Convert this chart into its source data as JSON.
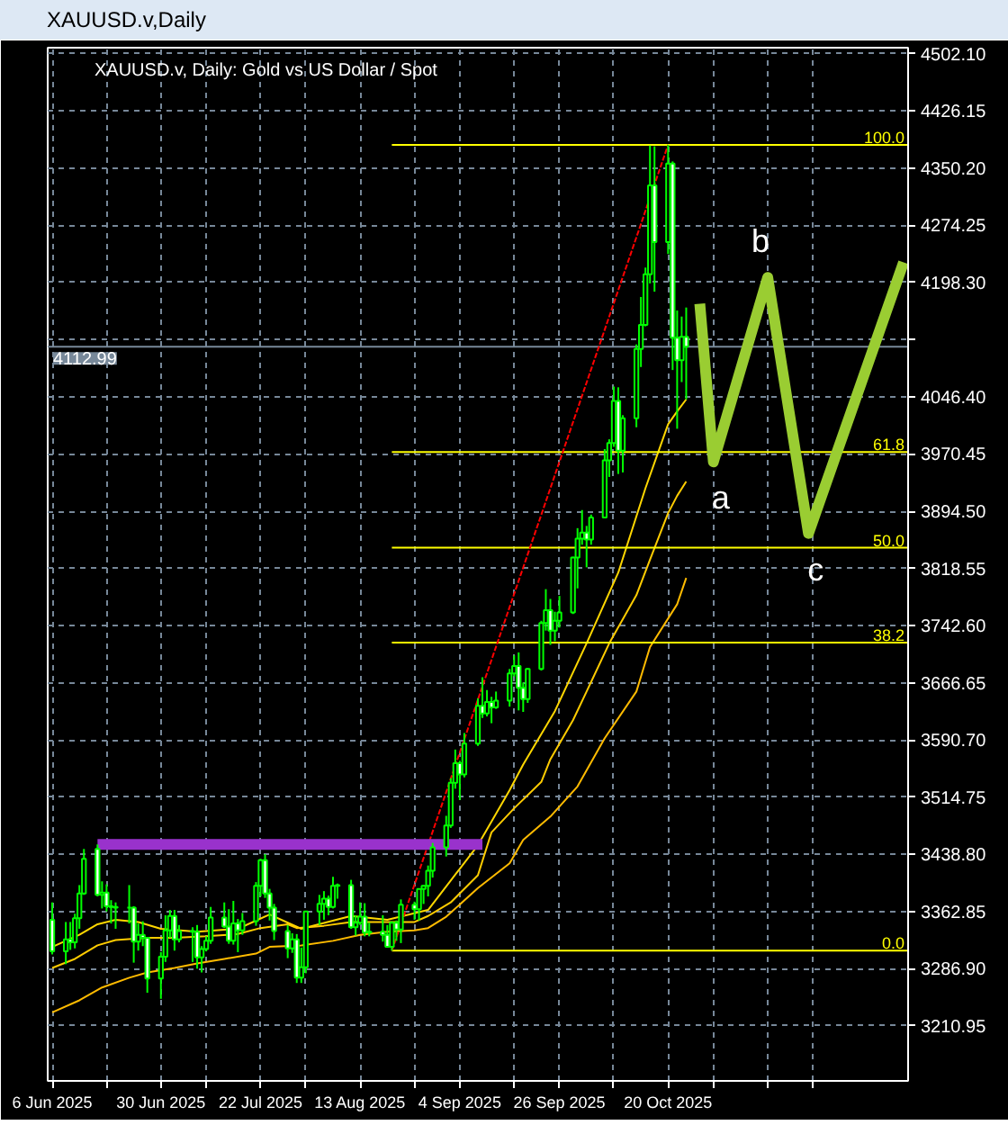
{
  "chart_data": {
    "type": "candlestick",
    "title": "XAUUSD.v,Daily",
    "subtitle": "XAUUSD.v, Daily: Gold vs US Dollar / Spot",
    "color": "#00ff00",
    "x": [
      "2025-06-06",
      "2025-06-09",
      "2025-06-10",
      "2025-06-11",
      "2025-06-12",
      "2025-06-13",
      "2025-06-16",
      "2025-06-17",
      "2025-06-18",
      "2025-06-19",
      "2025-06-20",
      "2025-06-23",
      "2025-06-24",
      "2025-06-25",
      "2025-06-26",
      "2025-06-27",
      "2025-06-30",
      "2025-07-01",
      "2025-07-02",
      "2025-07-03",
      "2025-07-04",
      "2025-07-07",
      "2025-07-08",
      "2025-07-09",
      "2025-07-10",
      "2025-07-11",
      "2025-07-14",
      "2025-07-15",
      "2025-07-16",
      "2025-07-17",
      "2025-07-18",
      "2025-07-21",
      "2025-07-22",
      "2025-07-23",
      "2025-07-24",
      "2025-07-25",
      "2025-07-28",
      "2025-07-29",
      "2025-07-30",
      "2025-07-31",
      "2025-08-01",
      "2025-08-04",
      "2025-08-05",
      "2025-08-06",
      "2025-08-07",
      "2025-08-08",
      "2025-08-11",
      "2025-08-12",
      "2025-08-13",
      "2025-08-14",
      "2025-08-15",
      "2025-08-18",
      "2025-08-19",
      "2025-08-20",
      "2025-08-21",
      "2025-08-22",
      "2025-08-25",
      "2025-08-26",
      "2025-08-27",
      "2025-08-28",
      "2025-08-29",
      "2025-09-01",
      "2025-09-02",
      "2025-09-03",
      "2025-09-04",
      "2025-09-05",
      "2025-09-08",
      "2025-09-09",
      "2025-09-10",
      "2025-09-11",
      "2025-09-12",
      "2025-09-15",
      "2025-09-16",
      "2025-09-17",
      "2025-09-18",
      "2025-09-19",
      "2025-09-22",
      "2025-09-23",
      "2025-09-24",
      "2025-09-25",
      "2025-09-26",
      "2025-09-29",
      "2025-09-30",
      "2025-10-01",
      "2025-10-02",
      "2025-10-03",
      "2025-10-06",
      "2025-10-07",
      "2025-10-08",
      "2025-10-09",
      "2025-10-10",
      "2025-10-13",
      "2025-10-14",
      "2025-10-15",
      "2025-10-16",
      "2025-10-17",
      "2025-10-20",
      "2025-10-21",
      "2025-10-22",
      "2025-10-23",
      "2025-10-24"
    ],
    "ohlc": [
      [
        3352,
        3375,
        3306,
        3310
      ],
      [
        3310,
        3349,
        3293,
        3326
      ],
      [
        3326,
        3349,
        3312,
        3322
      ],
      [
        3322,
        3360,
        3314,
        3354
      ],
      [
        3354,
        3398,
        3340,
        3387
      ],
      [
        3387,
        3446,
        3385,
        3433
      ],
      [
        3446,
        3452,
        3383,
        3385
      ],
      [
        3385,
        3403,
        3367,
        3388
      ],
      [
        3388,
        3399,
        3363,
        3370
      ],
      [
        3370,
        3378,
        3347,
        3369
      ],
      [
        3369,
        3375,
        3340,
        3368
      ],
      [
        3368,
        3398,
        3347,
        3368
      ],
      [
        3368,
        3370,
        3295,
        3323
      ],
      [
        3323,
        3347,
        3311,
        3332
      ],
      [
        3332,
        3350,
        3317,
        3328
      ],
      [
        3328,
        3329,
        3255,
        3274
      ],
      [
        3274,
        3309,
        3247,
        3303
      ],
      [
        3303,
        3358,
        3296,
        3338
      ],
      [
        3338,
        3365,
        3328,
        3357
      ],
      [
        3357,
        3365,
        3311,
        3326
      ],
      [
        3326,
        3345,
        3322,
        3337
      ],
      [
        3337,
        3342,
        3296,
        3336
      ],
      [
        3336,
        3345,
        3287,
        3302
      ],
      [
        3302,
        3317,
        3282,
        3313
      ],
      [
        3313,
        3330,
        3310,
        3324
      ],
      [
        3324,
        3369,
        3320,
        3355
      ],
      [
        3355,
        3375,
        3341,
        3343
      ],
      [
        3343,
        3366,
        3320,
        3324
      ],
      [
        3324,
        3377,
        3319,
        3347
      ],
      [
        3347,
        3353,
        3309,
        3338
      ],
      [
        3338,
        3361,
        3332,
        3350
      ],
      [
        3350,
        3402,
        3344,
        3397
      ],
      [
        3397,
        3433,
        3383,
        3431
      ],
      [
        3431,
        3439,
        3381,
        3387
      ],
      [
        3387,
        3393,
        3351,
        3368
      ],
      [
        3368,
        3373,
        3325,
        3337
      ],
      [
        3337,
        3345,
        3301,
        3314
      ],
      [
        3314,
        3334,
        3308,
        3326
      ],
      [
        3326,
        3333,
        3268,
        3275
      ],
      [
        3275,
        3315,
        3268,
        3289
      ],
      [
        3289,
        3363,
        3281,
        3363
      ],
      [
        3363,
        3385,
        3345,
        3373
      ],
      [
        3373,
        3390,
        3352,
        3380
      ],
      [
        3380,
        3384,
        3358,
        3369
      ],
      [
        3369,
        3409,
        3367,
        3397
      ],
      [
        3397,
        3400,
        3380,
        3398
      ],
      [
        3398,
        3405,
        3340,
        3342
      ],
      [
        3342,
        3358,
        3331,
        3348
      ],
      [
        3348,
        3375,
        3345,
        3356
      ],
      [
        3356,
        3374,
        3330,
        3335
      ],
      [
        3335,
        3348,
        3330,
        3336
      ],
      [
        3336,
        3358,
        3323,
        3332
      ],
      [
        3332,
        3345,
        3315,
        3316
      ],
      [
        3316,
        3350,
        3311,
        3348
      ],
      [
        3348,
        3351,
        3324,
        3339
      ],
      [
        3339,
        3379,
        3321,
        3372
      ],
      [
        3372,
        3376,
        3352,
        3366
      ],
      [
        3366,
        3393,
        3351,
        3393
      ],
      [
        3393,
        3398,
        3373,
        3397
      ],
      [
        3397,
        3424,
        3383,
        3417
      ],
      [
        3417,
        3454,
        3408,
        3448
      ],
      [
        3448,
        3490,
        3436,
        3477
      ],
      [
        3477,
        3540,
        3474,
        3534
      ],
      [
        3534,
        3578,
        3526,
        3560
      ],
      [
        3560,
        3563,
        3511,
        3545
      ],
      [
        3545,
        3600,
        3541,
        3586
      ],
      [
        3586,
        3646,
        3583,
        3636
      ],
      [
        3636,
        3674,
        3620,
        3626
      ],
      [
        3626,
        3657,
        3622,
        3641
      ],
      [
        3641,
        3648,
        3613,
        3634
      ],
      [
        3634,
        3655,
        3632,
        3643
      ],
      [
        3643,
        3685,
        3635,
        3679
      ],
      [
        3679,
        3703,
        3675,
        3689
      ],
      [
        3689,
        3707,
        3630,
        3660
      ],
      [
        3660,
        3667,
        3628,
        3645
      ],
      [
        3645,
        3686,
        3640,
        3685
      ],
      [
        3685,
        3749,
        3683,
        3746
      ],
      [
        3746,
        3791,
        3736,
        3763
      ],
      [
        3763,
        3778,
        3717,
        3736
      ],
      [
        3736,
        3761,
        3722,
        3749
      ],
      [
        3749,
        3782,
        3740,
        3760
      ],
      [
        3760,
        3834,
        3758,
        3833
      ],
      [
        3833,
        3872,
        3792,
        3858
      ],
      [
        3858,
        3896,
        3850,
        3866
      ],
      [
        3866,
        3875,
        3820,
        3857
      ],
      [
        3857,
        3890,
        3850,
        3886
      ],
      [
        3886,
        3977,
        3885,
        3962
      ],
      [
        3962,
        3990,
        3940,
        3985
      ],
      [
        3985,
        4060,
        3980,
        4041
      ],
      [
        4041,
        4059,
        3944,
        3975
      ],
      [
        3975,
        4022,
        3946,
        4018
      ],
      [
        4018,
        4116,
        4006,
        4110
      ],
      [
        4110,
        4179,
        4086,
        4142
      ],
      [
        4142,
        4218,
        4140,
        4209
      ],
      [
        4209,
        4380,
        4197,
        4327
      ],
      [
        4327,
        4379,
        4186,
        4252
      ],
      [
        4252,
        4381,
        4236,
        4356
      ],
      [
        4356,
        4359,
        4082,
        4125
      ],
      [
        4125,
        4161,
        4004,
        4095
      ],
      [
        4095,
        4153,
        4066,
        4126
      ],
      [
        4126,
        4165,
        4043,
        4113
      ]
    ],
    "series": [
      {
        "type": "line",
        "color": "#ffd700",
        "x": [
          "2025-06-06",
          "2025-06-12",
          "2025-06-16",
          "2025-06-20",
          "2025-06-25",
          "2025-06-30",
          "2025-07-08",
          "2025-07-17",
          "2025-07-24",
          "2025-07-31",
          "2025-08-11",
          "2025-08-19",
          "2025-08-28",
          "2025-09-02",
          "2025-09-08",
          "2025-09-15",
          "2025-09-18",
          "2025-09-25",
          "2025-10-02",
          "2025-10-09",
          "2025-10-15",
          "2025-10-20",
          "2025-10-22",
          "2025-10-24"
        ],
        "values": [
          3316,
          3332,
          3346,
          3352,
          3349,
          3340,
          3336,
          3340,
          3359,
          3340,
          3357,
          3352,
          3365,
          3404,
          3451,
          3524,
          3558,
          3629,
          3719,
          3813,
          3925,
          4010,
          4027,
          4043
        ]
      },
      {
        "type": "line",
        "color": "#ffcc00",
        "x": [
          "2025-06-06",
          "2025-06-11",
          "2025-06-16",
          "2025-06-20",
          "2025-06-27",
          "2025-07-03",
          "2025-07-10",
          "2025-07-17",
          "2025-07-22",
          "2025-07-28",
          "2025-07-30",
          "2025-08-05",
          "2025-08-11",
          "2025-08-19",
          "2025-08-25",
          "2025-08-28",
          "2025-09-02",
          "2025-09-08",
          "2025-09-11",
          "2025-09-16",
          "2025-09-22",
          "2025-09-24",
          "2025-09-29",
          "2025-10-02",
          "2025-10-07",
          "2025-10-13",
          "2025-10-16",
          "2025-10-20",
          "2025-10-22",
          "2025-10-24"
        ],
        "values": [
          3288,
          3300,
          3318,
          3325,
          3328,
          3328,
          3330,
          3333,
          3341,
          3346,
          3341,
          3344,
          3349,
          3349,
          3349,
          3357,
          3375,
          3411,
          3468,
          3500,
          3535,
          3565,
          3617,
          3655,
          3719,
          3783,
          3830,
          3892,
          3915,
          3934
        ]
      },
      {
        "type": "line",
        "color": "#ffbb00",
        "x": [
          "2025-06-06",
          "2025-06-12",
          "2025-06-17",
          "2025-06-23",
          "2025-06-27",
          "2025-07-03",
          "2025-07-08",
          "2025-07-14",
          "2025-07-21",
          "2025-07-24",
          "2025-07-31",
          "2025-08-07",
          "2025-08-13",
          "2025-08-19",
          "2025-08-25",
          "2025-08-28",
          "2025-09-01",
          "2025-09-08",
          "2025-09-15",
          "2025-09-18",
          "2025-09-24",
          "2025-09-30",
          "2025-10-06",
          "2025-10-13",
          "2025-10-16",
          "2025-10-22",
          "2025-10-24"
        ],
        "values": [
          3229,
          3245,
          3262,
          3275,
          3282,
          3288,
          3294,
          3300,
          3307,
          3316,
          3318,
          3324,
          3332,
          3336,
          3338,
          3341,
          3356,
          3394,
          3427,
          3458,
          3489,
          3529,
          3593,
          3655,
          3714,
          3771,
          3806
        ]
      },
      {
        "type": "line",
        "name": "100.0",
        "color": "#ffff00",
        "x": [
          "2025-08-20",
          "2025-12-12"
        ],
        "values": [
          4381,
          4381
        ]
      },
      {
        "type": "line",
        "name": "61.8",
        "color": "#ffff00",
        "x": [
          "2025-08-20",
          "2025-12-12"
        ],
        "values": [
          3973,
          3973
        ]
      },
      {
        "type": "line",
        "name": "50.0",
        "color": "#ffff00",
        "x": [
          "2025-08-20",
          "2025-12-12"
        ],
        "values": [
          3846,
          3846
        ]
      },
      {
        "type": "line",
        "name": "38.2",
        "color": "#ffff00",
        "x": [
          "2025-08-20",
          "2025-12-12"
        ],
        "values": [
          3720,
          3720
        ]
      },
      {
        "type": "line",
        "name": "0.0",
        "color": "#ffff00",
        "x": [
          "2025-08-20",
          "2025-12-12"
        ],
        "values": [
          3311,
          3311
        ]
      },
      {
        "type": "line",
        "color": "#ff0000",
        "line_style": "dotted",
        "x": [
          "2025-08-20",
          "2025-10-20"
        ],
        "values": [
          3311,
          4381
        ]
      },
      {
        "type": "line",
        "color": "#9932cc",
        "x": [
          "2025-06-16",
          "2025-09-09"
        ],
        "values": [
          3452,
          3452
        ]
      },
      {
        "type": "line",
        "color": "#9acd32",
        "x": [
          "2025-10-27",
          "2025-10-30",
          "2025-11-11",
          "2025-11-20",
          "2025-12-11"
        ],
        "values": [
          4170,
          3960,
          4205,
          3865,
          4225
        ]
      }
    ],
    "annotations": [
      "a",
      "b",
      "c"
    ],
    "ref_lines": [
      {
        "axis": "y",
        "value": 4112.99,
        "label": "4112.99",
        "color": "#778899"
      }
    ],
    "xlim": [
      "2025-06-05",
      "2025-12-12"
    ],
    "xticks": [
      {
        "value": "2025-06-06",
        "label": "6 Jun 2025"
      },
      {
        "value": "2025-06-18",
        "label": null
      },
      {
        "value": "2025-06-30",
        "label": "30 Jun 2025"
      },
      {
        "value": "2025-07-10",
        "label": null
      },
      {
        "value": "2025-07-22",
        "label": "22 Jul 2025"
      },
      {
        "value": "2025-08-01",
        "label": null
      },
      {
        "value": "2025-08-13",
        "label": "13 Aug 2025"
      },
      {
        "value": "2025-08-25",
        "label": null
      },
      {
        "value": "2025-09-04",
        "label": "4 Sep 2025"
      },
      {
        "value": "2025-09-16",
        "label": null
      },
      {
        "value": "2025-09-26",
        "label": "26 Sep 2025"
      },
      {
        "value": "2025-10-08",
        "label": null
      },
      {
        "value": "2025-10-20",
        "label": "20 Oct 2025"
      },
      {
        "value": "2025-10-30",
        "label": null
      },
      {
        "value": "2025-11-11",
        "label": null
      },
      {
        "value": "2025-11-21",
        "label": null
      }
    ],
    "ylim": [
      3138,
      4510
    ],
    "yticks": [
      {
        "value": 3210.95,
        "label": "3210.95"
      },
      {
        "value": 3286.9,
        "label": "3286.90"
      },
      {
        "value": 3362.85,
        "label": "3362.85"
      },
      {
        "value": 3438.8,
        "label": "3438.80"
      },
      {
        "value": 3514.75,
        "label": "3514.75"
      },
      {
        "value": 3590.7,
        "label": "3590.70"
      },
      {
        "value": 3666.65,
        "label": "3666.65"
      },
      {
        "value": 3742.6,
        "label": "3742.60"
      },
      {
        "value": 3818.55,
        "label": "3818.55"
      },
      {
        "value": 3894.5,
        "label": "3894.50"
      },
      {
        "value": 3970.45,
        "label": "3970.45"
      },
      {
        "value": 4046.4,
        "label": "4046.40"
      },
      {
        "value": 4122.35,
        "label": null
      },
      {
        "value": 4198.3,
        "label": "4198.30"
      },
      {
        "value": 4274.25,
        "label": "4274.25"
      },
      {
        "value": 4350.2,
        "label": "4350.20"
      },
      {
        "value": 4426.15,
        "label": "4426.15"
      },
      {
        "value": 4502.1,
        "label": "4502.10"
      }
    ],
    "grid": true
  }
}
